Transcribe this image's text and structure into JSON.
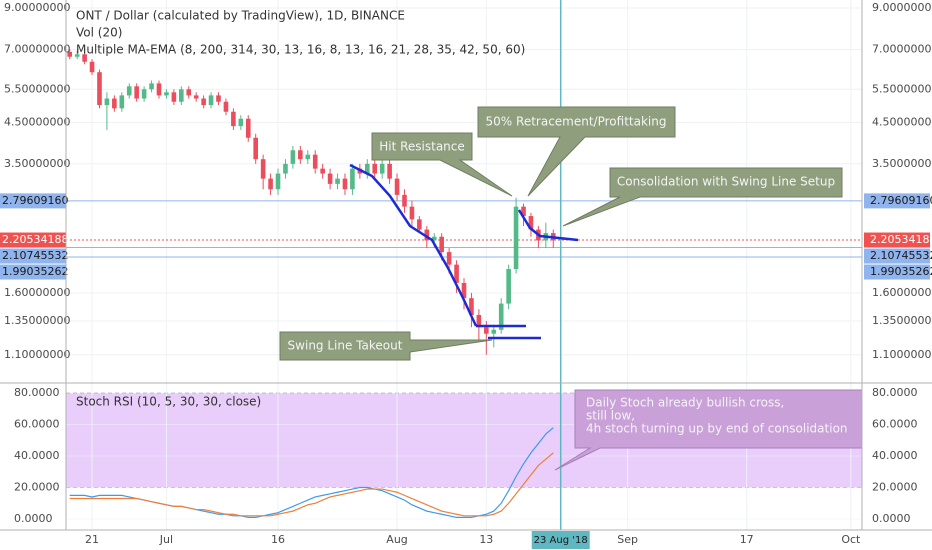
{
  "chart_data": [
    {
      "type": "candlestick",
      "title": "ONT / Dollar (calculated by TradingView), 1D, BINANCE",
      "indicators": [
        "Vol (20)",
        "Multiple MA-EMA (8, 200, 314, 30, 13, 16, 8, 13, 16, 21, 28, 35, 42, 50, 60)"
      ],
      "log_scale": true,
      "grid": true,
      "up_color": "#53b987",
      "down_color": "#eb4d5c",
      "xlim": [
        -0.5,
        106.5
      ],
      "xticks": [
        {
          "value": 3,
          "label": "21"
        },
        {
          "value": 13,
          "label": "Jul"
        },
        {
          "value": 28,
          "label": "16"
        },
        {
          "value": 44,
          "label": "Aug"
        },
        {
          "value": 56,
          "label": "13"
        },
        {
          "value": 75,
          "label": "Sep"
        },
        {
          "value": 91,
          "label": "17"
        },
        {
          "value": 105,
          "label": "Oct"
        }
      ],
      "crosshair": {
        "value": 66,
        "label": "23 Aug '18",
        "color": "#5fb7c2"
      },
      "ylim": [
        0.944,
        9.45
      ],
      "yticks": [
        {
          "value": 9,
          "label": "9.00000000"
        },
        {
          "value": 7,
          "label": "7.00000000"
        },
        {
          "value": 5.5,
          "label": "5.50000000"
        },
        {
          "value": 4.5,
          "label": "4.50000000"
        },
        {
          "value": 3.5,
          "label": "3.50000000"
        },
        {
          "value": 1.6,
          "label": "1.60000000"
        },
        {
          "value": 1.35,
          "label": "1.35000000"
        },
        {
          "value": 1.1,
          "label": "1.10000000"
        }
      ],
      "price_lines": [
        {
          "value": 2.7960916,
          "label": "2.79609160",
          "color": "#8fb4ee"
        },
        {
          "value": 2.20534188,
          "label": "2.20534188",
          "color": "#ef5350"
        },
        {
          "value": 2.10745532,
          "label": "2.10745532",
          "color": "#8fb4ee"
        },
        {
          "value": 1.99035262,
          "label": "1.99035262",
          "color": "#8fb4ee"
        }
      ],
      "open": [
        6.9,
        6.7,
        6.8,
        6.5,
        6.1,
        5.0,
        5.2,
        4.9,
        5.3,
        5.6,
        5.2,
        5.5,
        5.7,
        5.3,
        5.4,
        5.1,
        5.5,
        5.3,
        5.2,
        5.0,
        5.3,
        5.1,
        4.8,
        4.4,
        4.6,
        4.1,
        3.6,
        3.2,
        3.0,
        3.3,
        3.5,
        3.8,
        3.6,
        3.7,
        3.4,
        3.3,
        3.1,
        3.2,
        3.0,
        3.4,
        3.3,
        3.5,
        3.3,
        3.5,
        3.2,
        2.9,
        2.7,
        2.5,
        2.35,
        2.2,
        2.25,
        2.05,
        1.9,
        1.7,
        1.55,
        1.4,
        1.3,
        1.25,
        1.28,
        1.5,
        1.85,
        2.7,
        2.55,
        2.35,
        2.2,
        2.3
      ],
      "high": [
        7.0,
        6.95,
        6.9,
        6.6,
        6.2,
        5.4,
        5.3,
        5.4,
        5.7,
        5.7,
        5.6,
        5.8,
        5.8,
        5.5,
        5.5,
        5.6,
        5.6,
        5.4,
        5.3,
        5.4,
        5.4,
        5.2,
        4.9,
        4.7,
        4.7,
        4.2,
        3.7,
        3.3,
        3.4,
        3.6,
        3.9,
        3.9,
        3.8,
        3.8,
        3.5,
        3.4,
        3.3,
        3.3,
        3.5,
        3.5,
        3.6,
        3.6,
        3.6,
        3.6,
        3.3,
        3.0,
        2.8,
        2.55,
        2.4,
        2.3,
        2.3,
        2.1,
        1.95,
        1.75,
        1.6,
        1.45,
        1.35,
        1.32,
        1.55,
        1.9,
        2.85,
        2.75,
        2.6,
        2.4,
        2.45,
        2.35
      ],
      "low": [
        6.6,
        6.6,
        6.4,
        6.0,
        4.9,
        4.3,
        4.8,
        4.8,
        5.2,
        5.1,
        5.1,
        5.4,
        5.2,
        5.2,
        5.0,
        5.0,
        5.2,
        5.1,
        4.9,
        4.9,
        5.0,
        4.7,
        4.3,
        4.3,
        4.0,
        3.5,
        3.0,
        2.9,
        2.9,
        3.2,
        3.4,
        3.5,
        3.5,
        3.3,
        3.2,
        3.0,
        3.0,
        2.9,
        2.9,
        3.2,
        3.2,
        3.2,
        3.2,
        3.1,
        2.8,
        2.6,
        2.4,
        2.3,
        2.1,
        2.1,
        1.95,
        1.8,
        1.6,
        1.45,
        1.3,
        1.2,
        1.1,
        1.15,
        1.25,
        1.45,
        1.8,
        2.4,
        2.25,
        2.1,
        2.1,
        2.1
      ],
      "close": [
        6.7,
        6.8,
        6.5,
        6.1,
        5.0,
        5.2,
        4.9,
        5.3,
        5.6,
        5.2,
        5.5,
        5.7,
        5.3,
        5.4,
        5.1,
        5.5,
        5.3,
        5.2,
        5.0,
        5.3,
        5.1,
        4.8,
        4.4,
        4.6,
        4.1,
        3.6,
        3.2,
        3.0,
        3.3,
        3.5,
        3.8,
        3.6,
        3.7,
        3.4,
        3.3,
        3.1,
        3.2,
        3.0,
        3.4,
        3.3,
        3.5,
        3.3,
        3.5,
        3.2,
        2.9,
        2.7,
        2.5,
        2.35,
        2.2,
        2.25,
        2.05,
        1.9,
        1.7,
        1.55,
        1.4,
        1.3,
        1.25,
        1.28,
        1.5,
        1.85,
        2.7,
        2.55,
        2.35,
        2.2,
        2.3,
        2.2
      ],
      "annotations": [
        "Hit Resistance",
        "50% Retracement/Profittaking",
        "Consolidation with Swing Line Setup",
        "Swing Line Takeout"
      ]
    },
    {
      "type": "line",
      "title": "Stoch RSI (10, 5, 30, 30, close)",
      "band": [
        20,
        80
      ],
      "band_color": "#e9cdfb",
      "ylim": [
        -7,
        84.5
      ],
      "yticks": [
        {
          "value": 80,
          "label": "80.0000"
        },
        {
          "value": 60,
          "label": "60.0000"
        },
        {
          "value": 40,
          "label": "40.0000"
        },
        {
          "value": 20,
          "label": "20.0000"
        },
        {
          "value": 0,
          "label": "0.0000"
        }
      ],
      "series": [
        {
          "color": "#3d9be9",
          "values": [
            15,
            15,
            15,
            14,
            15,
            15,
            15,
            15,
            14,
            13,
            12,
            11,
            10,
            9,
            8,
            8,
            7,
            6,
            5,
            4,
            3,
            3,
            2,
            2,
            1,
            1,
            2,
            3,
            4,
            6,
            8,
            10,
            12,
            14,
            15,
            16,
            17,
            18,
            19,
            20,
            20,
            19,
            18,
            16,
            14,
            12,
            9,
            7,
            5,
            4,
            3,
            2,
            1,
            1,
            1,
            2,
            3,
            5,
            10,
            18,
            27,
            35,
            42,
            48,
            54,
            58
          ]
        },
        {
          "color": "#f07f3c",
          "values": [
            13,
            13,
            13,
            13,
            13,
            13,
            13,
            13,
            13,
            13,
            12,
            11,
            10,
            9,
            8,
            8,
            7,
            6,
            6,
            5,
            4,
            3,
            3,
            2,
            2,
            2,
            2,
            2,
            3,
            4,
            5,
            7,
            9,
            10,
            12,
            14,
            15,
            16,
            17,
            18,
            19,
            19,
            19,
            18,
            17,
            15,
            13,
            11,
            9,
            7,
            5,
            4,
            3,
            2,
            2,
            2,
            2,
            3,
            5,
            10,
            16,
            22,
            28,
            34,
            38,
            42
          ]
        }
      ],
      "annotation": [
        "Daily Stoch already bullish cross,",
        "still low,",
        "4h stoch turning up by end of consolidation"
      ]
    }
  ]
}
